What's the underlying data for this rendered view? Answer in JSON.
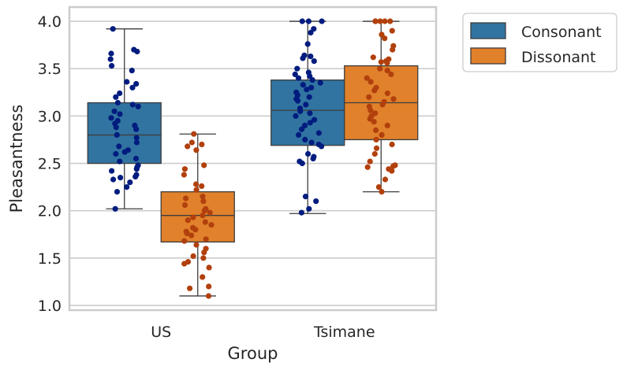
{
  "chart_data": {
    "type": "box",
    "xlabel": "Group",
    "ylabel": "Pleasantness",
    "categories": [
      "US",
      "Tsimane"
    ],
    "ylim": [
      0.95,
      4.15
    ],
    "yticks": [
      "1.0",
      "1.5",
      "2.0",
      "2.5",
      "3.0",
      "3.5",
      "4.0"
    ],
    "grid": "horizontal",
    "legend_position": "outside-top-right",
    "series": [
      {
        "name": "Consonant",
        "color": "#3274a1",
        "point_color": "#001c7f",
        "boxes": [
          {
            "category": "US",
            "whisker_low": 2.02,
            "q1": 2.5,
            "median": 2.8,
            "q3": 3.14,
            "whisker_high": 3.92,
            "points": [
              3.92,
              3.7,
              3.68,
              3.66,
              3.6,
              3.53,
              3.48,
              3.36,
              3.34,
              3.3,
              3.24,
              3.2,
              3.14,
              3.12,
              3.1,
              3.05,
              3.02,
              2.98,
              2.95,
              2.92,
              2.9,
              2.88,
              2.86,
              2.8,
              2.77,
              2.72,
              2.68,
              2.64,
              2.62,
              2.6,
              2.55,
              2.52,
              2.48,
              2.46,
              2.44,
              2.42,
              2.38,
              2.36,
              2.35,
              2.33,
              2.3,
              2.25,
              2.2,
              2.02
            ]
          },
          {
            "category": "Tsimane",
            "whisker_low": 1.97,
            "q1": 2.69,
            "median": 3.06,
            "q3": 3.38,
            "whisker_high": 4.0,
            "points": [
              4.0,
              4.0,
              4.0,
              3.92,
              3.88,
              3.76,
              3.64,
              3.63,
              3.61,
              3.58,
              3.5,
              3.46,
              3.44,
              3.42,
              3.4,
              3.38,
              3.35,
              3.33,
              3.3,
              3.28,
              3.25,
              3.22,
              3.2,
              3.18,
              3.16,
              3.12,
              3.08,
              3.05,
              3.03,
              3.0,
              2.96,
              2.93,
              2.9,
              2.86,
              2.82,
              2.8,
              2.75,
              2.72,
              2.7,
              2.68,
              2.6,
              2.57,
              2.55,
              2.52,
              2.5,
              2.15,
              2.1,
              2.02,
              1.98
            ]
          }
        ]
      },
      {
        "name": "Dissonant",
        "color": "#e1812c",
        "point_color": "#b1400d",
        "boxes": [
          {
            "category": "US",
            "whisker_low": 1.1,
            "q1": 1.67,
            "median": 1.95,
            "q3": 2.2,
            "whisker_high": 2.81,
            "points": [
              2.81,
              2.72,
              2.7,
              2.68,
              2.64,
              2.48,
              2.44,
              2.38,
              2.28,
              2.26,
              2.22,
              2.15,
              2.13,
              2.1,
              2.06,
              2.02,
              2.0,
              1.98,
              1.95,
              1.93,
              1.9,
              1.88,
              1.85,
              1.82,
              1.8,
              1.78,
              1.76,
              1.74,
              1.7,
              1.68,
              1.64,
              1.6,
              1.56,
              1.52,
              1.5,
              1.46,
              1.44,
              1.4,
              1.3,
              1.2,
              1.18,
              1.1
            ]
          },
          {
            "category": "Tsimane",
            "whisker_low": 2.2,
            "q1": 2.75,
            "median": 3.14,
            "q3": 3.53,
            "whisker_high": 4.0,
            "points": [
              4.0,
              4.0,
              4.0,
              4.0,
              4.0,
              3.9,
              3.86,
              3.82,
              3.74,
              3.7,
              3.62,
              3.6,
              3.58,
              3.57,
              3.56,
              3.5,
              3.48,
              3.44,
              3.4,
              3.36,
              3.3,
              3.27,
              3.24,
              3.2,
              3.18,
              3.15,
              3.12,
              3.1,
              3.06,
              3.03,
              3.0,
              2.97,
              2.94,
              2.9,
              2.85,
              2.8,
              2.75,
              2.7,
              2.66,
              2.6,
              2.52,
              2.48,
              2.47,
              2.46,
              2.44,
              2.42,
              2.33,
              2.25,
              2.2
            ]
          }
        ]
      }
    ]
  }
}
